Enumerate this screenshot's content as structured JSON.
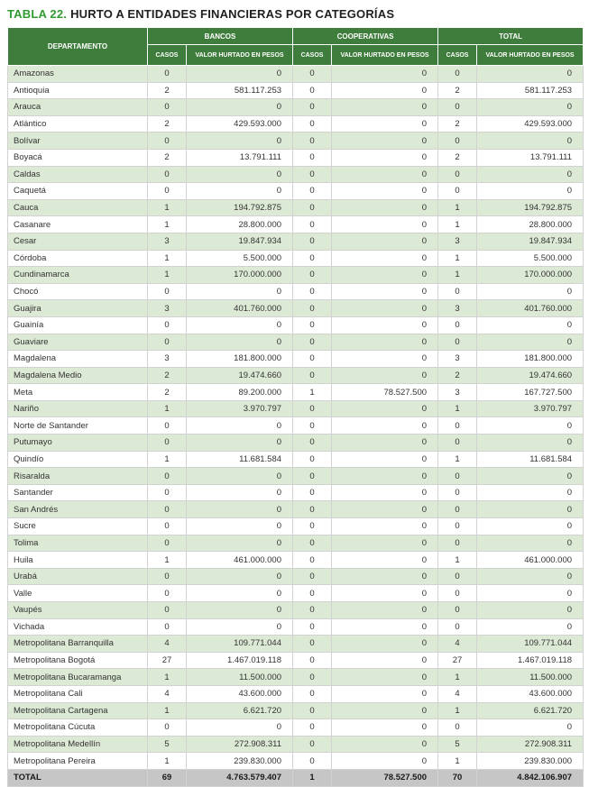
{
  "title": {
    "prefix": "TABLA 22.",
    "text": "HURTO A ENTIDADES FINANCIERAS POR CATEGORÍAS"
  },
  "colors": {
    "accent_green": "#339933",
    "header_green": "#3F7D3C",
    "row_green": "#DCE9D5",
    "total_gray": "#C6C6C6"
  },
  "table": {
    "department_header": "DEPARTAMENTO",
    "groups": [
      "BANCOS",
      "COOPERATIVAS",
      "TOTAL"
    ],
    "sub_headers": [
      "CASOS",
      "VALOR HURTADO EN PESOS"
    ],
    "rows": [
      {
        "departamento": "Amazonas",
        "values": [
          "0",
          "0",
          "0",
          "0",
          "0",
          "0"
        ]
      },
      {
        "departamento": "Antioquia",
        "values": [
          "2",
          "581.117.253",
          "0",
          "0",
          "2",
          "581.117.253"
        ]
      },
      {
        "departamento": "Arauca",
        "values": [
          "0",
          "0",
          "0",
          "0",
          "0",
          "0"
        ]
      },
      {
        "departamento": "Atlántico",
        "values": [
          "2",
          "429.593.000",
          "0",
          "0",
          "2",
          "429.593.000"
        ]
      },
      {
        "departamento": "Bolívar",
        "values": [
          "0",
          "0",
          "0",
          "0",
          "0",
          "0"
        ]
      },
      {
        "departamento": "Boyacá",
        "values": [
          "2",
          "13.791.111",
          "0",
          "0",
          "2",
          "13.791.111"
        ]
      },
      {
        "departamento": "Caldas",
        "values": [
          "0",
          "0",
          "0",
          "0",
          "0",
          "0"
        ]
      },
      {
        "departamento": "Caquetá",
        "values": [
          "0",
          "0",
          "0",
          "0",
          "0",
          "0"
        ]
      },
      {
        "departamento": "Cauca",
        "values": [
          "1",
          "194.792.875",
          "0",
          "0",
          "1",
          "194.792.875"
        ]
      },
      {
        "departamento": "Casanare",
        "values": [
          "1",
          "28.800.000",
          "0",
          "0",
          "1",
          "28.800.000"
        ]
      },
      {
        "departamento": "Cesar",
        "values": [
          "3",
          "19.847.934",
          "0",
          "0",
          "3",
          "19.847.934"
        ]
      },
      {
        "departamento": "Córdoba",
        "values": [
          "1",
          "5.500.000",
          "0",
          "0",
          "1",
          "5.500.000"
        ]
      },
      {
        "departamento": "Cundinamarca",
        "values": [
          "1",
          "170.000.000",
          "0",
          "0",
          "1",
          "170.000.000"
        ]
      },
      {
        "departamento": "Chocó",
        "values": [
          "0",
          "0",
          "0",
          "0",
          "0",
          "0"
        ]
      },
      {
        "departamento": "Guajira",
        "values": [
          "3",
          "401.760.000",
          "0",
          "0",
          "3",
          "401.760.000"
        ]
      },
      {
        "departamento": "Guainía",
        "values": [
          "0",
          "0",
          "0",
          "0",
          "0",
          "0"
        ]
      },
      {
        "departamento": "Guaviare",
        "values": [
          "0",
          "0",
          "0",
          "0",
          "0",
          "0"
        ]
      },
      {
        "departamento": "Magdalena",
        "values": [
          "3",
          "181.800.000",
          "0",
          "0",
          "3",
          "181.800.000"
        ]
      },
      {
        "departamento": "Magdalena Medio",
        "values": [
          "2",
          "19.474.660",
          "0",
          "0",
          "2",
          "19.474.660"
        ]
      },
      {
        "departamento": "Meta",
        "values": [
          "2",
          "89.200.000",
          "1",
          "78.527.500",
          "3",
          "167.727.500"
        ]
      },
      {
        "departamento": "Nariño",
        "values": [
          "1",
          "3.970.797",
          "0",
          "0",
          "1",
          "3.970.797"
        ]
      },
      {
        "departamento": "Norte de Santander",
        "values": [
          "0",
          "0",
          "0",
          "0",
          "0",
          "0"
        ]
      },
      {
        "departamento": "Putumayo",
        "values": [
          "0",
          "0",
          "0",
          "0",
          "0",
          "0"
        ]
      },
      {
        "departamento": "Quindío",
        "values": [
          "1",
          "11.681.584",
          "0",
          "0",
          "1",
          "11.681.584"
        ]
      },
      {
        "departamento": "Risaralda",
        "values": [
          "0",
          "0",
          "0",
          "0",
          "0",
          "0"
        ]
      },
      {
        "departamento": "Santander",
        "values": [
          "0",
          "0",
          "0",
          "0",
          "0",
          "0"
        ]
      },
      {
        "departamento": "San Andrés",
        "values": [
          "0",
          "0",
          "0",
          "0",
          "0",
          "0"
        ]
      },
      {
        "departamento": "Sucre",
        "values": [
          "0",
          "0",
          "0",
          "0",
          "0",
          "0"
        ]
      },
      {
        "departamento": "Tolima",
        "values": [
          "0",
          "0",
          "0",
          "0",
          "0",
          "0"
        ]
      },
      {
        "departamento": "Huila",
        "values": [
          "1",
          "461.000.000",
          "0",
          "0",
          "1",
          "461.000.000"
        ]
      },
      {
        "departamento": "Urabá",
        "values": [
          "0",
          "0",
          "0",
          "0",
          "0",
          "0"
        ]
      },
      {
        "departamento": "Valle",
        "values": [
          "0",
          "0",
          "0",
          "0",
          "0",
          "0"
        ]
      },
      {
        "departamento": "Vaupés",
        "values": [
          "0",
          "0",
          "0",
          "0",
          "0",
          "0"
        ]
      },
      {
        "departamento": "Vichada",
        "values": [
          "0",
          "0",
          "0",
          "0",
          "0",
          "0"
        ]
      },
      {
        "departamento": "Metropolitana Barranquilla",
        "values": [
          "4",
          "109.771.044",
          "0",
          "0",
          "4",
          "109.771.044"
        ]
      },
      {
        "departamento": "Metropolitana Bogotá",
        "values": [
          "27",
          "1.467.019.118",
          "0",
          "0",
          "27",
          "1.467.019.118"
        ]
      },
      {
        "departamento": "Metropolitana Bucaramanga",
        "values": [
          "1",
          "11.500.000",
          "0",
          "0",
          "1",
          "11.500.000"
        ]
      },
      {
        "departamento": "Metropolitana Cali",
        "values": [
          "4",
          "43.600.000",
          "0",
          "0",
          "4",
          "43.600.000"
        ]
      },
      {
        "departamento": "Metropolitana Cartagena",
        "values": [
          "1",
          "6.621.720",
          "0",
          "0",
          "1",
          "6.621.720"
        ]
      },
      {
        "departamento": "Metropolitana Cúcuta",
        "values": [
          "0",
          "0",
          "0",
          "0",
          "0",
          "0"
        ]
      },
      {
        "departamento": "Metropolitana Medellín",
        "values": [
          "5",
          "272.908.311",
          "0",
          "0",
          "5",
          "272.908.311"
        ]
      },
      {
        "departamento": "Metropolitana Pereira",
        "values": [
          "1",
          "239.830.000",
          "0",
          "0",
          "1",
          "239.830.000"
        ]
      }
    ],
    "total_row": {
      "label": "TOTAL",
      "values": [
        "69",
        "4.763.579.407",
        "1",
        "78.527.500",
        "70",
        "4.842.106.907"
      ]
    }
  }
}
